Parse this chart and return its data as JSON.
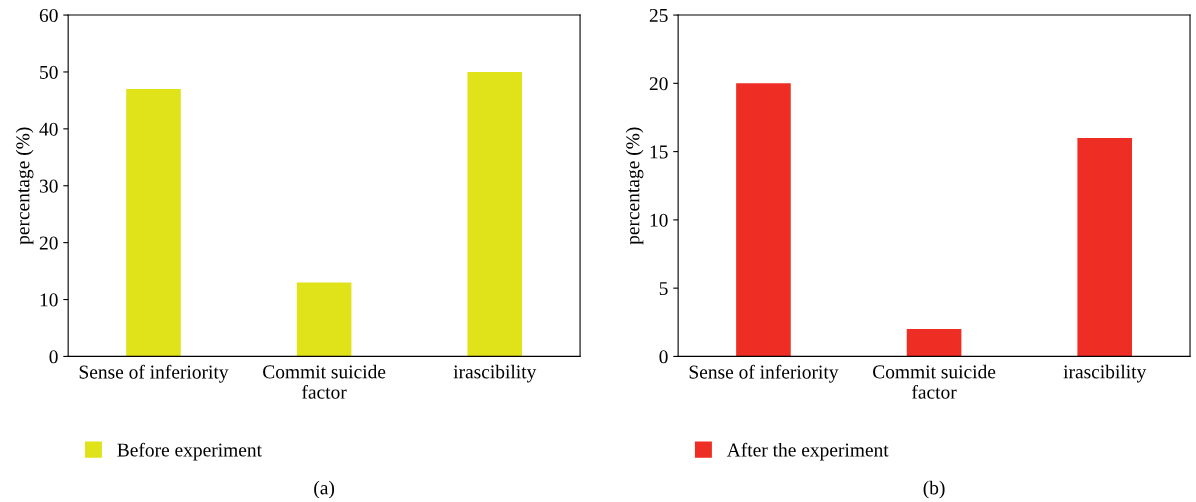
{
  "chart_data": [
    {
      "type": "bar",
      "ylabel": "percentage (%)",
      "categories": [
        "Sense of inferiority",
        "Commit suicide\nfactor",
        "irascibility"
      ],
      "series": [
        {
          "name": "Before experiment",
          "color": "#e0e21a",
          "values": [
            47,
            13,
            50
          ]
        }
      ],
      "ylim": [
        0,
        60
      ],
      "yticks": [
        0,
        10,
        20,
        30,
        40,
        50,
        60
      ],
      "legend": "bottom",
      "grid": false,
      "annotations": [
        "(a)"
      ]
    },
    {
      "type": "bar",
      "ylabel": "percentage (%)",
      "categories": [
        "Sense of inferiority",
        "Commit suicide\nfactor",
        "irascibility"
      ],
      "series": [
        {
          "name": "After the experiment",
          "color": "#ee2e24",
          "values": [
            20,
            2,
            16
          ]
        }
      ],
      "ylim": [
        0,
        25
      ],
      "yticks": [
        0,
        5,
        10,
        15,
        20,
        25
      ],
      "legend": "bottom",
      "grid": false,
      "annotations": [
        "(b)"
      ]
    }
  ]
}
